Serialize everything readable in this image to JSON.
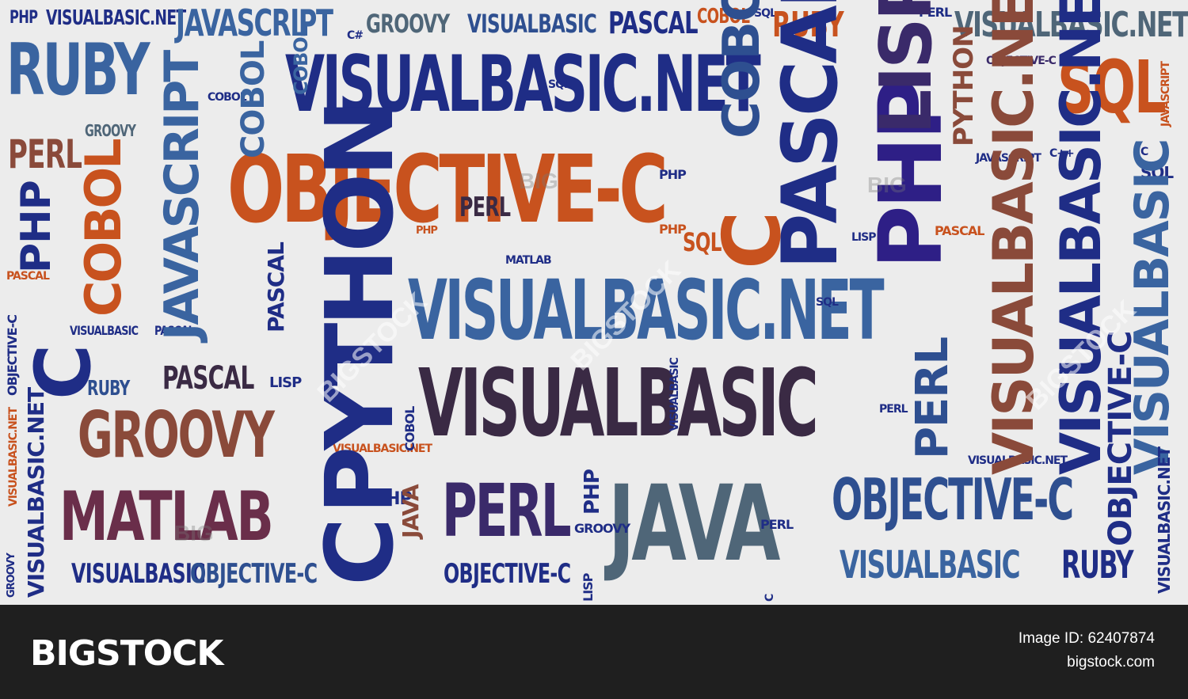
{
  "cloud": {
    "words": [
      "PHP",
      "VISUALBASIC.NET",
      "JAVASCRIPT",
      "C#",
      "GROOVY",
      "VISUALBASIC",
      "PASCAL",
      "COBOL",
      "SQL",
      "RUBY",
      "PERL",
      "JAVASCRIPT",
      "C",
      "COBOL",
      "SQL",
      "OBJECTIVE-C",
      "LISP",
      "GROOVY",
      "PERL",
      "PHP",
      "C",
      "COBOL",
      "OBJECTIVE-C",
      "PASCAL",
      "PHP",
      "LISP",
      "PYTHON",
      "JAVASCRIPT",
      "C++",
      "SQL",
      "PASCAL",
      "C",
      "PERL",
      "LISP",
      "SQL",
      "PHP",
      "MATLAB",
      "C",
      "PHP",
      "PASCAL",
      "VISUALBASIC.NET",
      "OBJECTIVE-C",
      "C",
      "VISUALBASIC",
      "PASCAL",
      "RUBY",
      "PASCAL",
      "C#",
      "LISP",
      "PYTHON",
      "VISUALBASIC",
      "VISUALBASIC.NET",
      "VISUALBASIC",
      "GROOVY",
      "MATLAB",
      "VISUALBASIC.NET",
      "COBOL",
      "JAVA",
      "PERL",
      "JAVA",
      "PHP",
      "GROOVY",
      "PYTHON",
      "SQL",
      "LISP",
      "JAVA",
      "PERL",
      "RUBY",
      "C#",
      "COBOL",
      "OBJECTIVE-C",
      "VISUALBASIC",
      "RUBY",
      "VISUALBASIC",
      "OBJECTIVE-C",
      "OBJECTIVE-C",
      "LISP",
      "JAVA",
      "GROOVY",
      "VISUALBASIC.NET",
      "VISUALBASIC.NET",
      "VISUALBASIC",
      "VISUALBASIC.NET",
      "PERL",
      "C",
      "PHP",
      "JAVASCRIPT",
      "COBOL",
      "C",
      "RUBY",
      "VISUALBASIC",
      "SQL",
      "PHP",
      "C",
      "COBOL",
      "JAVASCRIPT",
      "PHP",
      "PERL",
      "C",
      "GROOVY",
      "PASCAL",
      "VISUALBASIC.NET",
      "RUBY",
      "PASCAL",
      "C",
      "LISP",
      "SQL",
      "COBOL",
      "C",
      "PERL",
      "PASCAL",
      "VISUALBASIC",
      "C",
      "C#",
      "GROOVY",
      "LISP"
    ],
    "watermark": "BIGSTOCK",
    "watermark_short": "BIG"
  },
  "footer": {
    "logo": "BIGSTOCK",
    "image_id": "Image ID: 62407874",
    "site": "bigstock.com"
  },
  "colors": {
    "navy": "#1f2d86",
    "blue": "#3a64a0",
    "slate": "#4f6678",
    "orange": "#c8521e",
    "plum": "#4a2a46",
    "rust": "#8a4a3a",
    "background": "#ececec",
    "footer": "#1f1f1f"
  }
}
